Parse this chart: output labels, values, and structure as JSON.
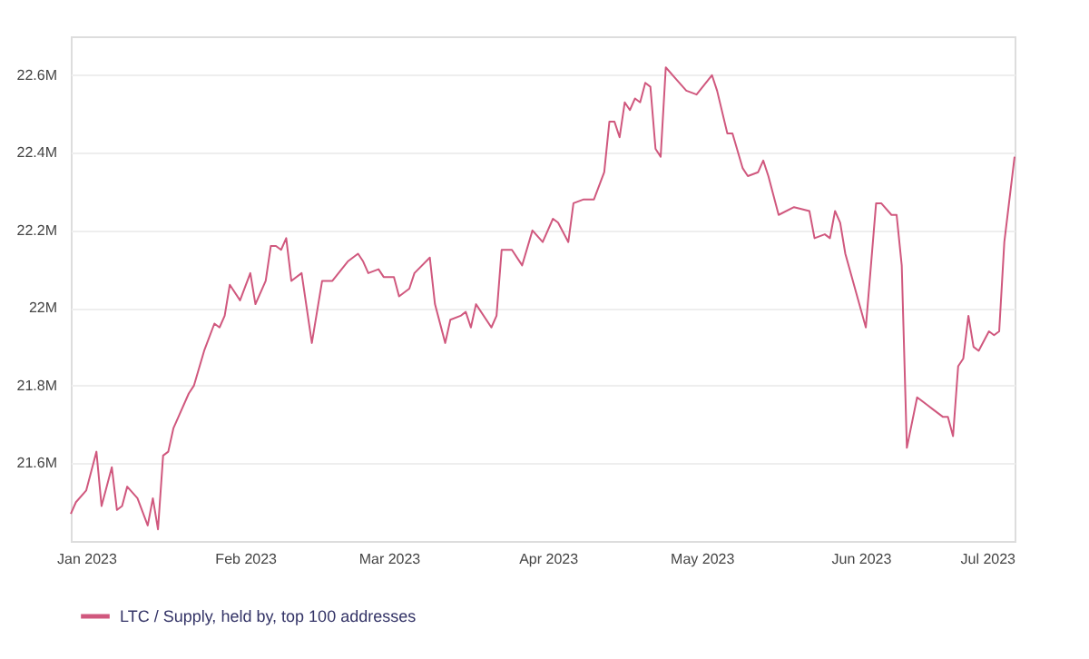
{
  "chart_data": {
    "type": "line",
    "x": [
      "2022-12-29",
      "2022-12-30",
      "2023-01-01",
      "2023-01-03",
      "2023-01-04",
      "2023-01-06",
      "2023-01-07",
      "2023-01-08",
      "2023-01-09",
      "2023-01-11",
      "2023-01-13",
      "2023-01-14",
      "2023-01-15",
      "2023-01-16",
      "2023-01-17",
      "2023-01-18",
      "2023-01-19",
      "2023-01-21",
      "2023-01-22",
      "2023-01-24",
      "2023-01-26",
      "2023-01-27",
      "2023-01-28",
      "2023-01-29",
      "2023-01-31",
      "2023-02-02",
      "2023-02-03",
      "2023-02-05",
      "2023-02-06",
      "2023-02-07",
      "2023-02-08",
      "2023-02-09",
      "2023-02-10",
      "2023-02-12",
      "2023-02-14",
      "2023-02-16",
      "2023-02-18",
      "2023-02-21",
      "2023-02-23",
      "2023-02-24",
      "2023-02-25",
      "2023-02-27",
      "2023-02-28",
      "2023-03-02",
      "2023-03-03",
      "2023-03-05",
      "2023-03-06",
      "2023-03-09",
      "2023-03-10",
      "2023-03-12",
      "2023-03-13",
      "2023-03-15",
      "2023-03-16",
      "2023-03-17",
      "2023-03-18",
      "2023-03-21",
      "2023-03-22",
      "2023-03-23",
      "2023-03-25",
      "2023-03-27",
      "2023-03-29",
      "2023-03-31",
      "2023-04-02",
      "2023-04-03",
      "2023-04-05",
      "2023-04-06",
      "2023-04-08",
      "2023-04-10",
      "2023-04-12",
      "2023-04-13",
      "2023-04-14",
      "2023-04-15",
      "2023-04-16",
      "2023-04-17",
      "2023-04-18",
      "2023-04-19",
      "2023-04-20",
      "2023-04-21",
      "2023-04-22",
      "2023-04-23",
      "2023-04-24",
      "2023-04-26",
      "2023-04-28",
      "2023-04-30",
      "2023-05-03",
      "2023-05-04",
      "2023-05-06",
      "2023-05-07",
      "2023-05-09",
      "2023-05-10",
      "2023-05-12",
      "2023-05-13",
      "2023-05-14",
      "2023-05-16",
      "2023-05-19",
      "2023-05-22",
      "2023-05-23",
      "2023-05-25",
      "2023-05-26",
      "2023-05-27",
      "2023-05-28",
      "2023-05-29",
      "2023-06-02",
      "2023-06-04",
      "2023-06-05",
      "2023-06-07",
      "2023-06-08",
      "2023-06-09",
      "2023-06-10",
      "2023-06-12",
      "2023-06-14",
      "2023-06-15",
      "2023-06-17",
      "2023-06-18",
      "2023-06-19",
      "2023-06-20",
      "2023-06-21",
      "2023-06-22",
      "2023-06-23",
      "2023-06-24",
      "2023-06-26",
      "2023-06-27",
      "2023-06-28",
      "2023-06-29",
      "2023-07-01"
    ],
    "series": [
      {
        "name": "LTC / Supply, held by, top 100 addresses",
        "color": "#d0587e",
        "values": [
          21.47,
          21.5,
          21.53,
          21.63,
          21.49,
          21.59,
          21.48,
          21.49,
          21.54,
          21.51,
          21.44,
          21.51,
          21.43,
          21.62,
          21.63,
          21.69,
          21.72,
          21.78,
          21.8,
          21.89,
          21.96,
          21.95,
          21.98,
          22.06,
          22.02,
          22.09,
          22.01,
          22.07,
          22.16,
          22.16,
          22.15,
          22.18,
          22.07,
          22.09,
          21.91,
          22.07,
          22.07,
          22.12,
          22.14,
          22.12,
          22.09,
          22.1,
          22.08,
          22.08,
          22.03,
          22.05,
          22.09,
          22.13,
          22.01,
          21.91,
          21.97,
          21.98,
          21.99,
          21.95,
          22.01,
          21.95,
          21.98,
          22.15,
          22.15,
          22.11,
          22.2,
          22.17,
          22.23,
          22.22,
          22.17,
          22.27,
          22.28,
          22.28,
          22.35,
          22.48,
          22.48,
          22.44,
          22.53,
          22.51,
          22.54,
          22.53,
          22.58,
          22.57,
          22.41,
          22.39,
          22.62,
          22.59,
          22.56,
          22.55,
          22.6,
          22.56,
          22.45,
          22.45,
          22.36,
          22.34,
          22.35,
          22.38,
          22.34,
          22.24,
          22.26,
          22.25,
          22.18,
          22.19,
          22.18,
          22.25,
          22.22,
          22.14,
          21.95,
          22.27,
          22.27,
          22.24,
          22.24,
          22.11,
          21.64,
          21.77,
          21.75,
          21.74,
          21.72,
          21.72,
          21.67,
          21.85,
          21.87,
          21.98,
          21.9,
          21.89,
          21.94,
          21.93,
          21.94,
          22.17,
          22.39
        ]
      }
    ],
    "xlim": [
      "2022-12-29",
      "2023-07-01"
    ],
    "xticks": [
      {
        "value": "2023-01-01",
        "label": "Jan 2023"
      },
      {
        "value": "2023-02-01",
        "label": "Feb 2023"
      },
      {
        "value": "2023-03-01",
        "label": "Mar 2023"
      },
      {
        "value": "2023-04-01",
        "label": "Apr 2023"
      },
      {
        "value": "2023-05-01",
        "label": "May 2023"
      },
      {
        "value": "2023-06-01",
        "label": "Jun 2023"
      },
      {
        "value": "2023-07-01",
        "label": "Jul 2023"
      }
    ],
    "ylim": [
      21.4,
      22.7
    ],
    "yticks": [
      {
        "value": 21.6,
        "label": "21.6M"
      },
      {
        "value": 21.8,
        "label": "21.8M"
      },
      {
        "value": 22,
        "label": "22M"
      },
      {
        "value": 22.2,
        "label": "22.2M"
      },
      {
        "value": 22.4,
        "label": "22.4M"
      },
      {
        "value": 22.6,
        "label": "22.6M"
      }
    ],
    "grid": "y",
    "legend": "bottom left"
  }
}
